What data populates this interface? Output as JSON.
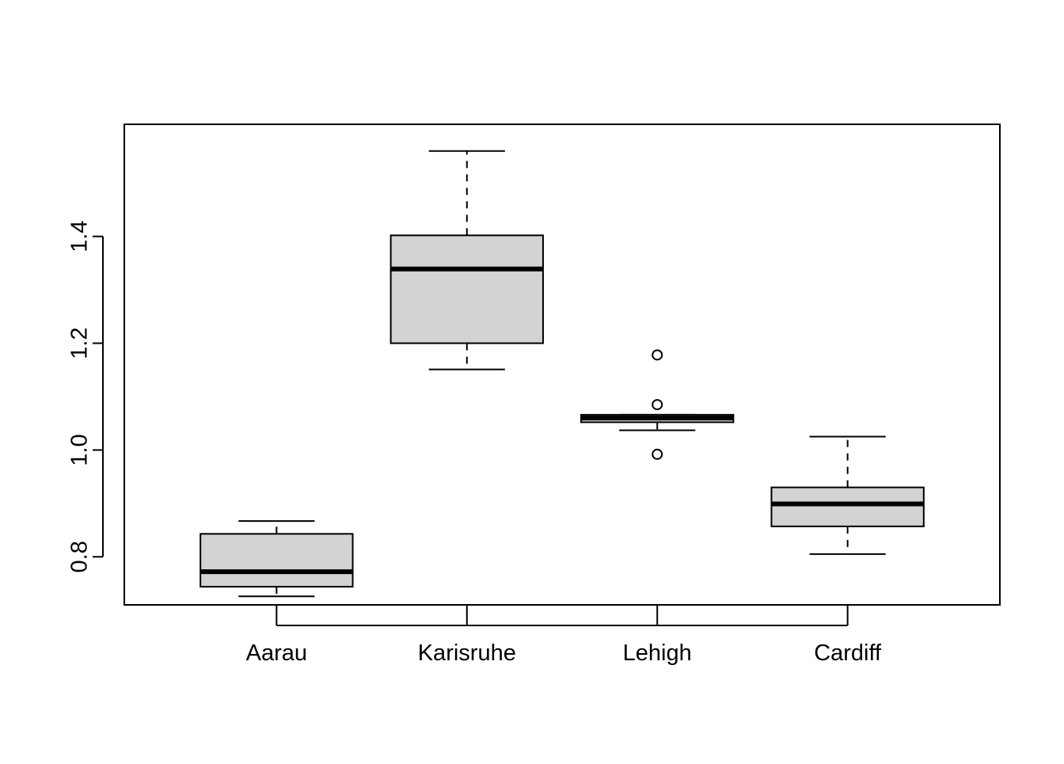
{
  "chart_data": {
    "type": "boxplot",
    "title": "",
    "xlabel": "",
    "ylabel": "",
    "ylim": [
      0.71,
      1.61
    ],
    "yticks": [
      0.8,
      1.0,
      1.2,
      1.4
    ],
    "ytick_labels": [
      "0.8",
      "1.0",
      "1.2",
      "1.4"
    ],
    "categories": [
      "Aarau",
      "Karisruhe",
      "Lehigh",
      "Cardiff"
    ],
    "boxes": [
      {
        "category": "Aarau",
        "whisker_low": 0.726,
        "q1": 0.744,
        "median": 0.772,
        "q3": 0.843,
        "whisker_high": 0.867,
        "outliers": []
      },
      {
        "category": "Karisruhe",
        "whisker_low": 1.151,
        "q1": 1.2,
        "median": 1.339,
        "q3": 1.402,
        "whisker_high": 1.56,
        "outliers": []
      },
      {
        "category": "Lehigh",
        "whisker_low": 1.037,
        "q1": 1.052,
        "median": 1.06,
        "q3": 1.066,
        "whisker_high": 1.066,
        "outliers": [
          0.992,
          1.085,
          1.178
        ]
      },
      {
        "category": "Cardiff",
        "whisker_low": 0.805,
        "q1": 0.857,
        "median": 0.899,
        "q3": 0.93,
        "whisker_high": 1.025,
        "outliers": []
      }
    ],
    "box_fill": "#d3d3d3",
    "line_color": "#000000",
    "grid": false,
    "legend": "none"
  }
}
